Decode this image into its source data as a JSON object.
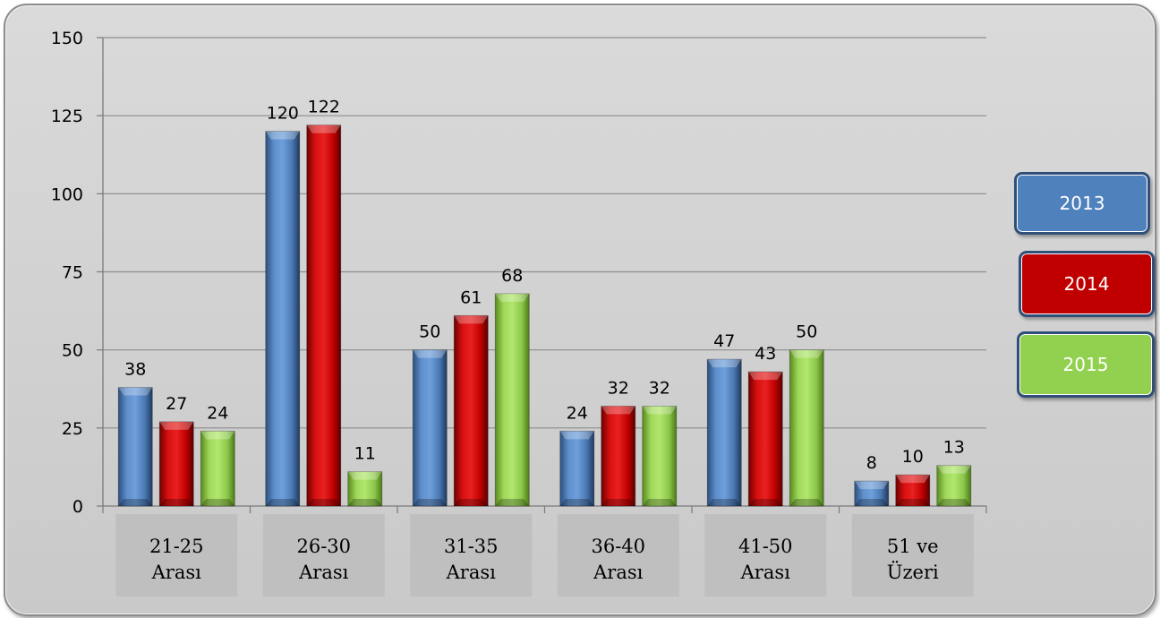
{
  "chart_data": {
    "type": "bar",
    "categories": [
      [
        "21-25",
        "Arası"
      ],
      [
        "26-30",
        "Arası"
      ],
      [
        "31-35",
        "Arası"
      ],
      [
        "36-40",
        "Arası"
      ],
      [
        "41-50",
        "Arası"
      ],
      [
        "51 ve",
        "Üzeri"
      ]
    ],
    "series": [
      {
        "name": "2013",
        "color": "#4f81bd",
        "values": [
          38,
          120,
          50,
          24,
          47,
          8
        ]
      },
      {
        "name": "2014",
        "color": "#c00000",
        "values": [
          27,
          122,
          61,
          32,
          43,
          10
        ]
      },
      {
        "name": "2015",
        "color": "#92d050",
        "values": [
          24,
          11,
          68,
          32,
          50,
          13
        ]
      }
    ],
    "yticks": [
      "0",
      "25",
      "50",
      "75",
      "100",
      "125",
      "150"
    ],
    "ylim": [
      0,
      150
    ],
    "grid": true,
    "legend": "right"
  }
}
